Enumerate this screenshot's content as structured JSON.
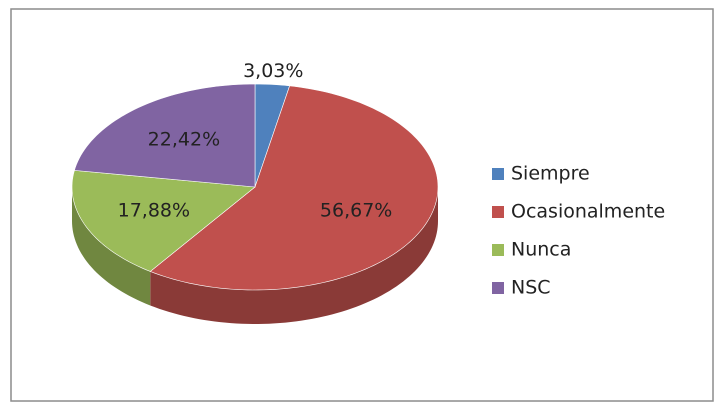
{
  "chart_data": {
    "type": "pie",
    "style": "3d",
    "categories": [
      "Siempre",
      "Ocasionalmente",
      "Nunca",
      "NSC"
    ],
    "values": [
      3.03,
      56.67,
      17.88,
      22.42
    ],
    "value_labels": [
      "3,03%",
      "56,67%",
      "17,88%",
      "22,42%"
    ],
    "colors": [
      "#4f81bd",
      "#c0504d",
      "#9bbb59",
      "#8064a2"
    ],
    "legend": "right"
  }
}
